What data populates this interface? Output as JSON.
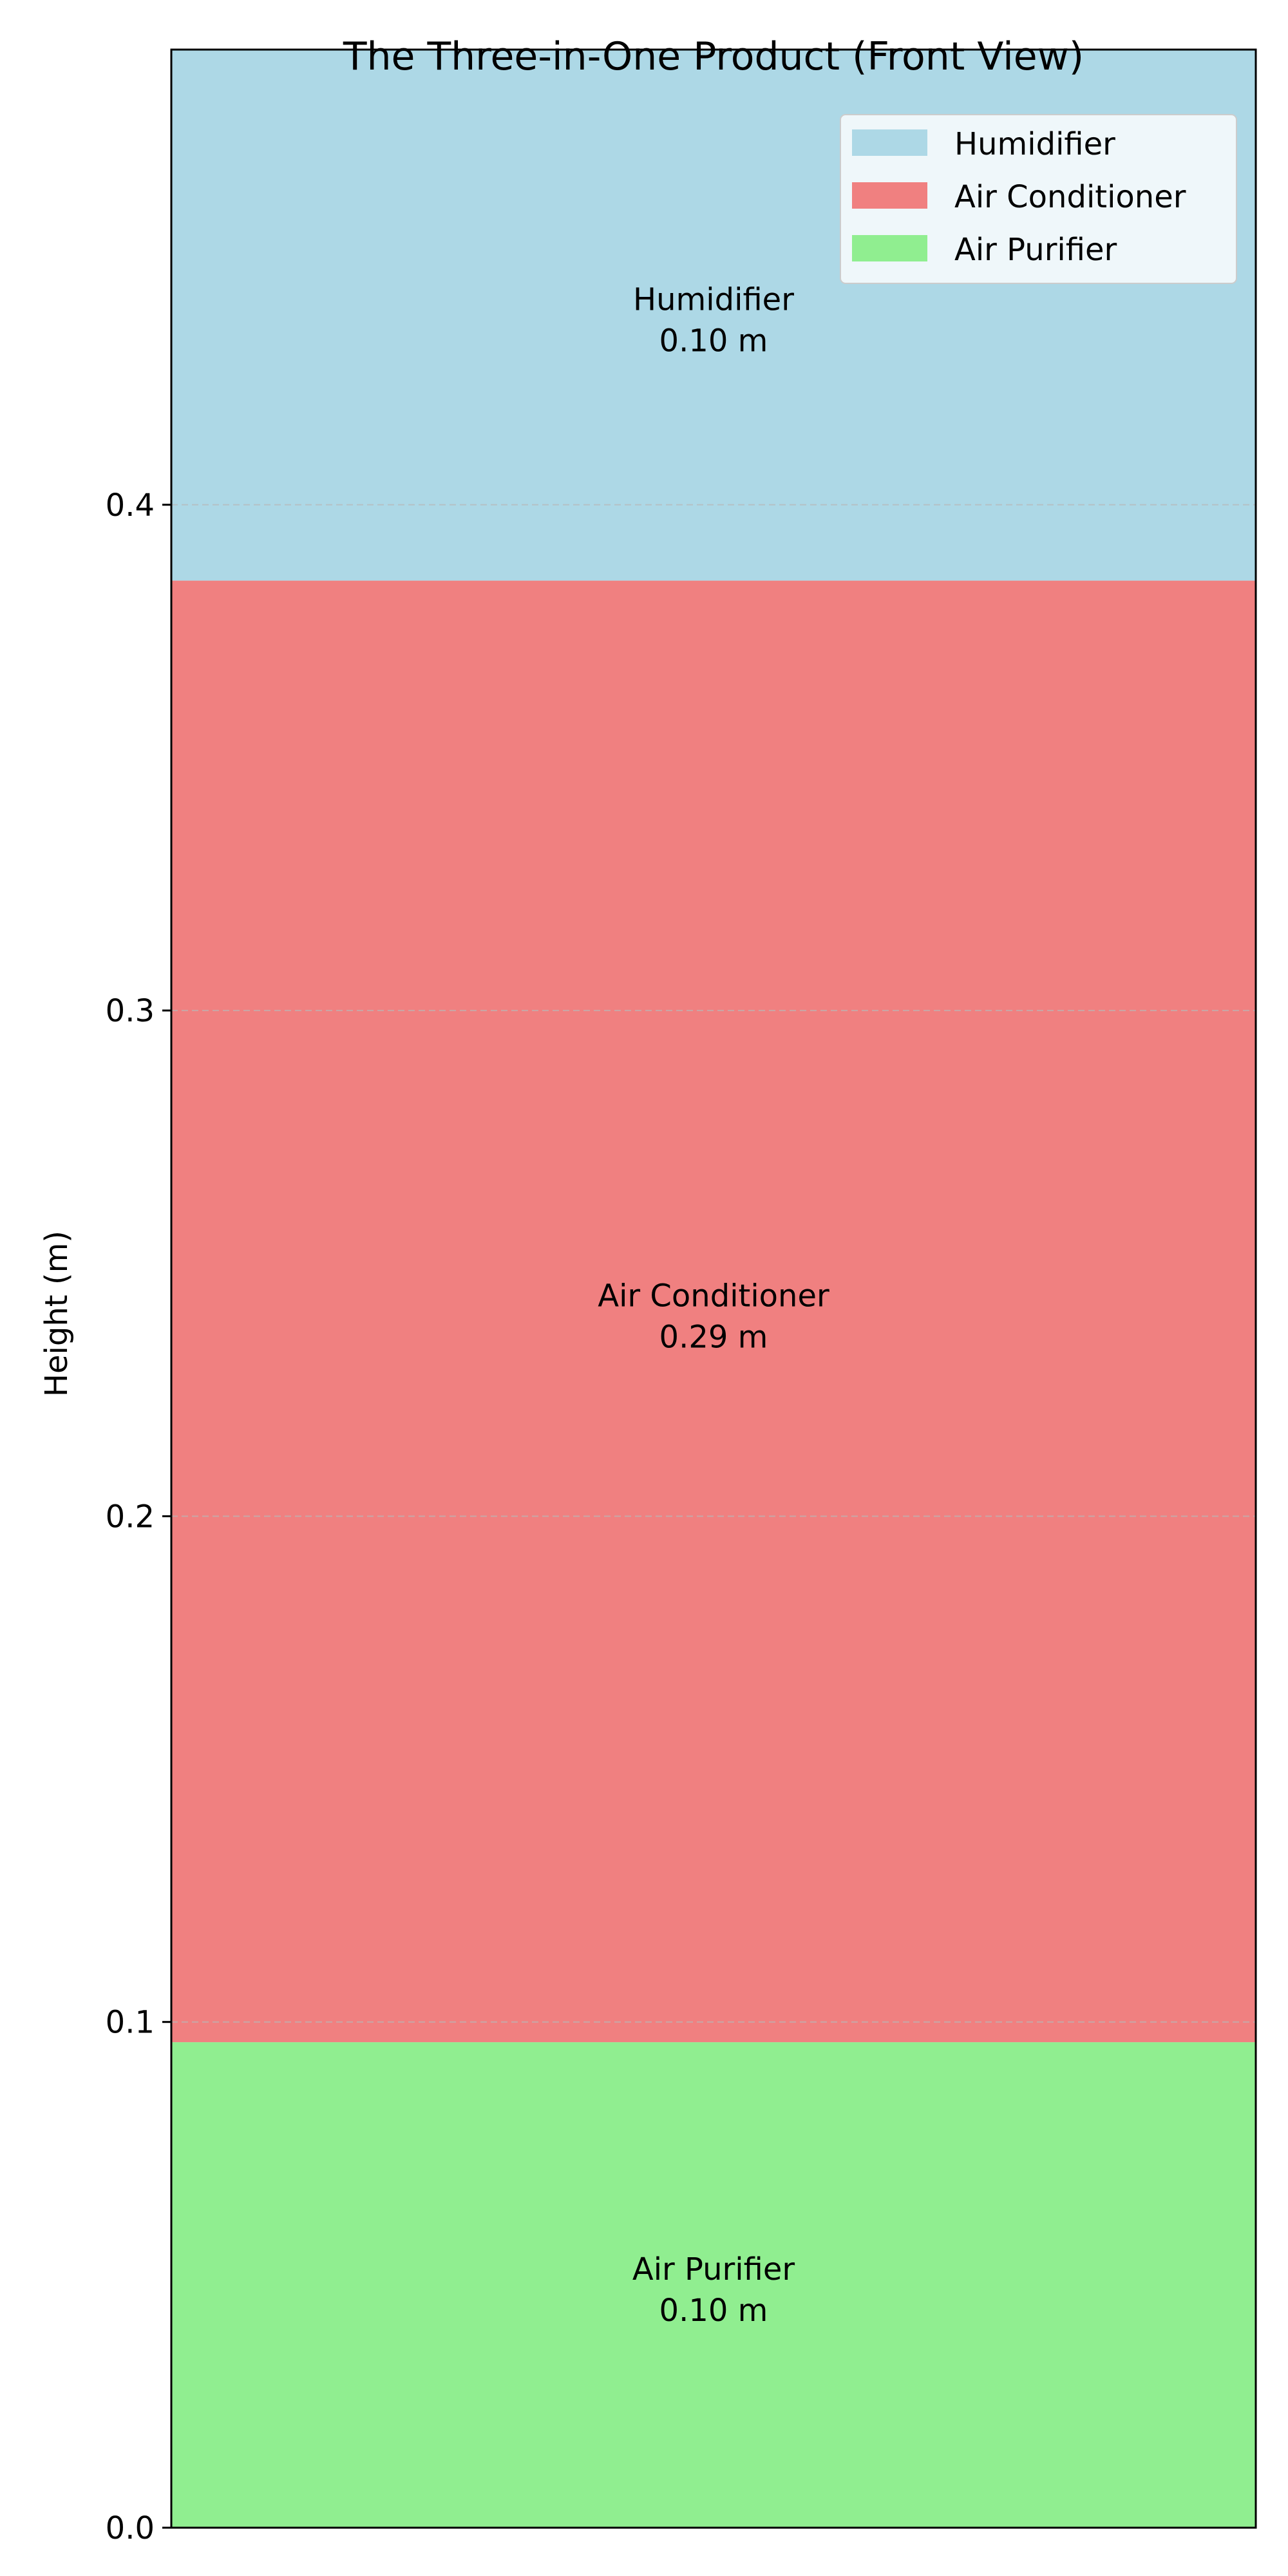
{
  "chart_data": {
    "type": "bar",
    "title": "The Three-in-One Product (Front View)",
    "xlabel": "",
    "ylabel": "Height (m)",
    "ylim": [
      0,
      0.49
    ],
    "y_ticks": [
      0.0,
      0.1,
      0.2,
      0.3,
      0.4
    ],
    "y_tick_labels": [
      "0.0",
      "0.1",
      "0.2",
      "0.3",
      "0.4"
    ],
    "grid": "horizontal dashed",
    "legend_position": "top-right",
    "segments": [
      {
        "name": "Air Purifier",
        "value_label": "0.10 m",
        "bottom": 0.0,
        "top": 0.096,
        "color": "#90EE90"
      },
      {
        "name": "Air Conditioner",
        "value_label": "0.29 m",
        "bottom": 0.096,
        "top": 0.385,
        "color": "#F08080"
      },
      {
        "name": "Humidifier",
        "value_label": "0.10 m",
        "bottom": 0.385,
        "top": 0.49,
        "color": "#ADD8E6"
      }
    ],
    "legend": [
      {
        "label": "Humidifier",
        "color": "#ADD8E6"
      },
      {
        "label": "Air Conditioner",
        "color": "#F08080"
      },
      {
        "label": "Air Purifier",
        "color": "#90EE90"
      }
    ]
  }
}
